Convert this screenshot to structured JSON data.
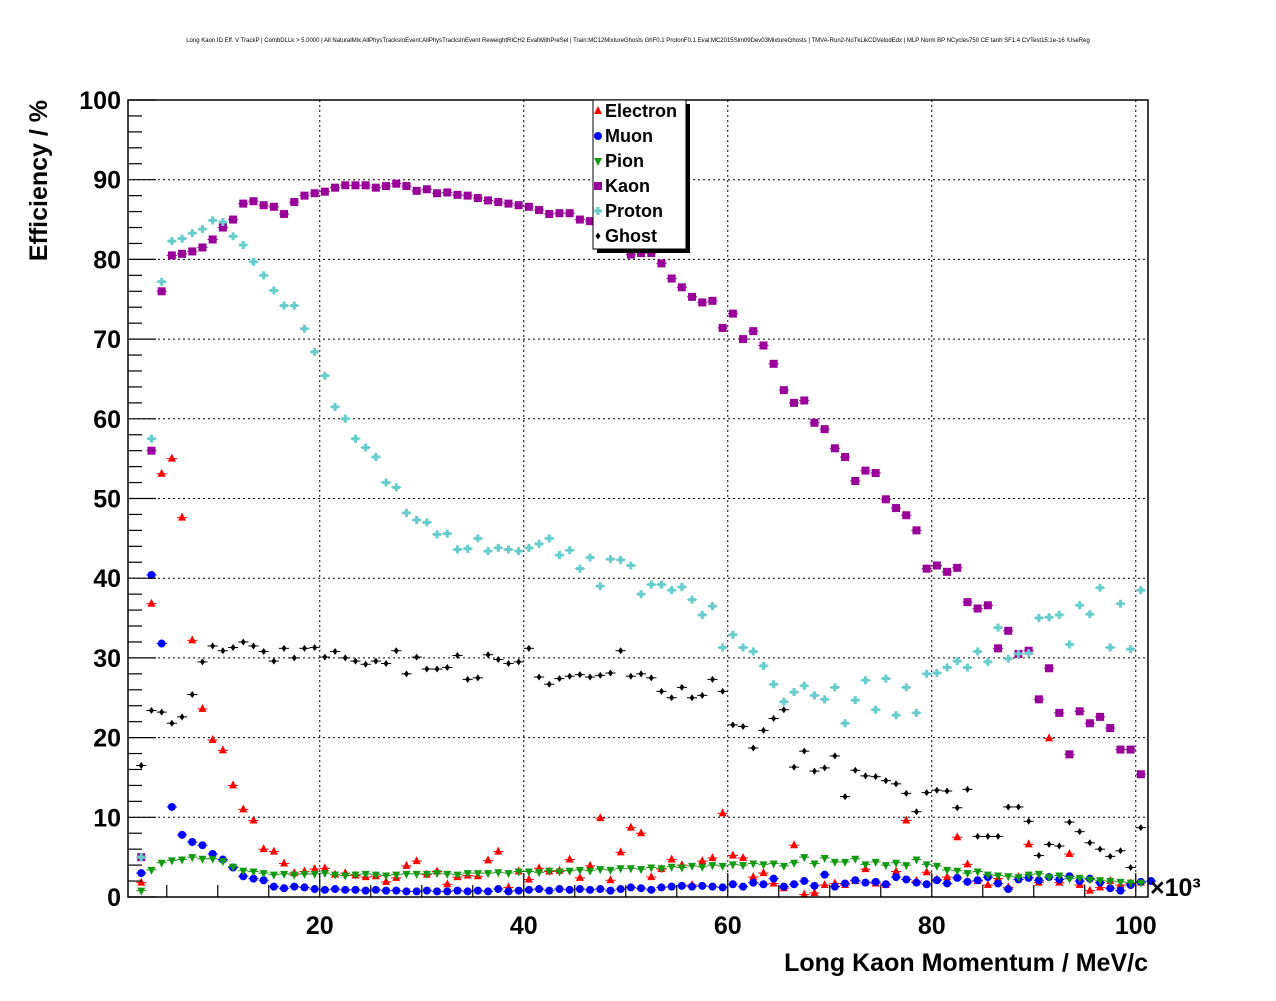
{
  "chart_data": {
    "type": "scatter",
    "title": "Long Kaon ID Eff. V TrackP | CombDLLk > 5.0000 | All NaturalMix AllPhysTracksInEvent:AllPhysTracksInEvent ReweightRICH2 EvalWithPreSel | Train:MC12MixtureGhosts GhF0.1 ProtonF0.1 Eval:MC2015Sim09Dev03MixtureGhosts | TMVA-Run2-NoTkLikCDVelodEdx | MLP Norm BP NCycles750 CE tanh SF1.4 CVTest15:1e-16 !UseReg",
    "xlabel": "Long Kaon Momentum / MeV/c",
    "ylabel": "Efficiency / %",
    "x_multiplier_label": "×10³",
    "xlim": [
      1.2,
      101.2
    ],
    "ylim": [
      0,
      100
    ],
    "x_ticks": [
      "20",
      "40",
      "60",
      "80",
      "100"
    ],
    "y_ticks": [
      "0",
      "10",
      "20",
      "30",
      "40",
      "50",
      "60",
      "70",
      "80",
      "90",
      "100"
    ],
    "grid": true,
    "legend_position": "top-center",
    "x_first_bin_center": 2.5,
    "bin_width": 1,
    "series": [
      {
        "name": "Electron",
        "color": "#ff0000",
        "marker": "triangle-up",
        "values": [
          1.8,
          36.8,
          53.1,
          55,
          47.6,
          32.2,
          23.6,
          19.7,
          18.4,
          14,
          11,
          9.6,
          6,
          5.7,
          4.2,
          3,
          3.2,
          3.5,
          3.6,
          2.8,
          3,
          2.7,
          2.5,
          2.6,
          1.9,
          2.4,
          3.9,
          4.5,
          2.8,
          3.2,
          1.6,
          2.5,
          2.7,
          2.6,
          4.6,
          5.7,
          1.2,
          3.2,
          2.2,
          3.6,
          3.2,
          3.3,
          4.7,
          2.4,
          3.9,
          9.9,
          2.1,
          5.6,
          8.7,
          8,
          2.5,
          3.5,
          4.7,
          4,
          1.5,
          4.5,
          4.9,
          10.5,
          5.2,
          4.9,
          2.5,
          3,
          1.7,
          1.1,
          6.5,
          0.3,
          0.5,
          1.5,
          1.7,
          1.5,
          2,
          3.5,
          1.7,
          1.5,
          3.2,
          9.6,
          2,
          3.1,
          2.2,
          2.5,
          7.5,
          4.1,
          2,
          1.5,
          2.3,
          1.2,
          2.5,
          6.6,
          1.8,
          19.9,
          1.8,
          5.4,
          1.5,
          0.8,
          1.2,
          2,
          1.5,
          1.7,
          1.8
        ]
      },
      {
        "name": "Muon",
        "color": "#0000ff",
        "marker": "circle",
        "values": [
          3,
          40.4,
          31.8,
          11.3,
          7.8,
          6.9,
          6.5,
          5.4,
          4.7,
          3.7,
          2.6,
          2.3,
          2.1,
          1.3,
          1.1,
          1.3,
          1.2,
          1,
          0.9,
          1,
          0.9,
          0.9,
          0.8,
          0.9,
          0.8,
          0.8,
          0.7,
          0.7,
          0.8,
          0.7,
          0.7,
          0.8,
          0.7,
          0.8,
          0.7,
          1,
          0.7,
          0.8,
          0.9,
          1,
          0.8,
          1,
          0.9,
          1,
          0.9,
          1,
          0.8,
          1,
          1.2,
          1.1,
          0.9,
          1.2,
          1.3,
          1.4,
          1.3,
          1.4,
          1.3,
          1.2,
          1.6,
          1.3,
          1.8,
          1.6,
          2.3,
          1.3,
          1.6,
          2,
          1.4,
          2.8,
          1.3,
          1.7,
          2.1,
          1.8,
          1.9,
          1.6,
          2.5,
          2.2,
          1.8,
          1.6,
          2.1,
          1.7,
          2.4,
          1.9,
          2.1,
          2.5,
          1.7,
          1,
          2.2,
          2.4,
          2.1,
          2.5,
          2.2,
          2.6,
          2,
          2.3,
          1.8,
          1.1,
          0.8,
          1.5,
          1.9,
          2
        ]
      },
      {
        "name": "Pion",
        "color": "#119911",
        "marker": "triangle-down",
        "values": [
          0.8,
          3.4,
          4.3,
          4.6,
          4.7,
          5,
          4.8,
          4.8,
          4.5,
          3.8,
          3.3,
          3.2,
          3,
          2.8,
          2.9,
          2.8,
          2.9,
          2.9,
          3,
          2.8,
          2.7,
          2.8,
          2.9,
          2.8,
          2.7,
          2.8,
          2.9,
          2.9,
          2.9,
          3,
          2.9,
          2.8,
          3,
          3,
          3,
          3.1,
          3,
          3.2,
          3.2,
          3.1,
          3.3,
          3.2,
          3.3,
          3.4,
          3.3,
          3.5,
          3.4,
          3.6,
          3.6,
          3.5,
          3.7,
          3.6,
          3.8,
          3.7,
          3.9,
          3.8,
          4,
          3.9,
          4.1,
          4,
          4.2,
          4.1,
          4.2,
          3.9,
          4.3,
          5,
          4.2,
          4.9,
          4.4,
          4.4,
          4.8,
          4.1,
          4.4,
          4,
          4.3,
          4,
          4.7,
          4.1,
          3.9,
          3.4,
          3.3,
          3,
          3.2,
          2.8,
          2.7,
          2.6,
          2.5,
          2.8,
          2.9,
          2.5,
          2.7,
          2.3,
          2.4,
          2.2,
          2.1,
          2,
          1.9,
          1.8,
          1.8
        ]
      },
      {
        "name": "Kaon",
        "color": "#990099",
        "marker": "square",
        "values": [
          5,
          56,
          76,
          80.5,
          80.7,
          81,
          81.5,
          82.5,
          84,
          85,
          87,
          87.3,
          86.8,
          86.6,
          85.7,
          87.2,
          88,
          88.3,
          88.5,
          89,
          89.3,
          89.3,
          89.3,
          89,
          89.2,
          89.5,
          89.2,
          88.6,
          88.8,
          88.3,
          88.4,
          88.1,
          88,
          87.7,
          87.4,
          87.2,
          87,
          86.8,
          86.6,
          86.2,
          85.7,
          85.8,
          85.8,
          85,
          84.8,
          83,
          82.5,
          82,
          80.6,
          80.8,
          80.8,
          79.5,
          77.6,
          76.5,
          75.3,
          74.6,
          74.8,
          71.4,
          73.2,
          70,
          71,
          69.2,
          66.9,
          63.6,
          62,
          62.3,
          59.5,
          58.7,
          56.3,
          55.2,
          52.2,
          53.5,
          53.2,
          49.9,
          48.8,
          47.9,
          46,
          41.2,
          41.6,
          40.8,
          41.3,
          37,
          36.2,
          36.6,
          31.2,
          33.4,
          30.5,
          30.9,
          24.8,
          28.7,
          23.1,
          17.9,
          23.3,
          21.8,
          22.6,
          21.2,
          18.5,
          18.5,
          15.4
        ]
      },
      {
        "name": "Proton",
        "color": "#66cccc",
        "marker": "cross",
        "values": [
          5,
          57.5,
          77.2,
          82.3,
          82.6,
          83.3,
          83.8,
          84.9,
          84.7,
          82.9,
          81.8,
          79.7,
          78,
          76.1,
          74.2,
          74.2,
          71.3,
          68.4,
          65.4,
          61.5,
          60,
          57.5,
          56.4,
          55.2,
          52,
          51.4,
          48.2,
          47.3,
          47,
          45.5,
          45.6,
          43.6,
          43.7,
          45,
          43.4,
          43.8,
          43.6,
          43.4,
          43.8,
          44.3,
          45,
          42.9,
          43.5,
          41.2,
          42.6,
          39,
          42.4,
          42.3,
          41.6,
          38,
          39.2,
          39.2,
          38.5,
          38.9,
          37.3,
          35.4,
          36.5,
          31.3,
          32.9,
          31.3,
          30.8,
          29,
          26.7,
          24.5,
          25.7,
          26.5,
          25.3,
          24.8,
          26.3,
          21.8,
          24.7,
          27.2,
          23.5,
          27.4,
          22.8,
          26.3,
          23.1,
          28,
          28.1,
          28.8,
          29.6,
          28.8,
          30.8,
          29.5,
          33.8,
          29.9,
          30.5,
          30.6,
          35,
          35.1,
          35.4,
          31.7,
          36.6,
          35.5,
          38.8,
          31.3,
          36.8,
          31.1,
          38.5
        ]
      },
      {
        "name": "Ghost",
        "color": "#000000",
        "marker": "diamond",
        "values": [
          16.5,
          23.4,
          23.2,
          21.8,
          22.6,
          25.4,
          29.5,
          31.5,
          30.9,
          31.3,
          32,
          31.5,
          30.8,
          29.6,
          31.2,
          30,
          31.2,
          31.3,
          30.1,
          30.8,
          30,
          29.6,
          29.2,
          29.6,
          29.3,
          30.9,
          28,
          30.1,
          28.6,
          28.6,
          28.8,
          30.3,
          27.3,
          27.5,
          30.4,
          29.8,
          29.3,
          29.5,
          31.2,
          27.6,
          26.7,
          27.4,
          27.7,
          27.9,
          27.6,
          27.8,
          28.1,
          30.9,
          27.7,
          28,
          27.5,
          25.8,
          25,
          26.3,
          25,
          25.3,
          27.3,
          25.8,
          21.6,
          21.4,
          18.7,
          20.9,
          22.4,
          23.5,
          16.3,
          18.3,
          15.8,
          16.2,
          17.7,
          12.6,
          15.9,
          15.2,
          15.1,
          14.6,
          14.2,
          13,
          10.7,
          13.1,
          13.4,
          13.3,
          11.2,
          13.5,
          7.6,
          7.6,
          7.6,
          11.3,
          11.3,
          9.5,
          5.2,
          6.6,
          6.4,
          9.4,
          8.2,
          6.8,
          6,
          5.1,
          5.8,
          3.7,
          8.7
        ]
      }
    ]
  }
}
